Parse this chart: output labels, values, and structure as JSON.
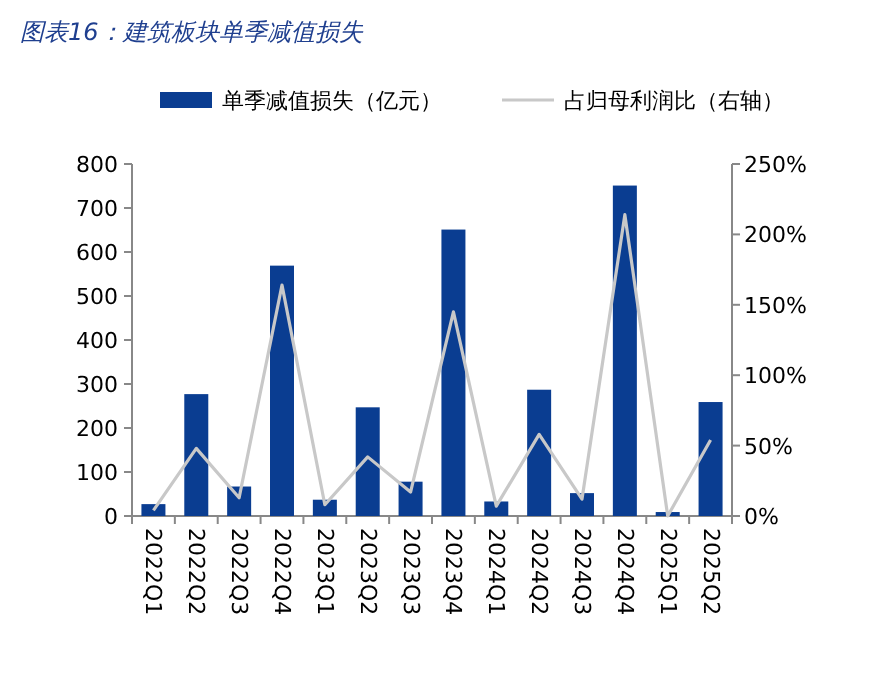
{
  "chart_data": {
    "type": "bar",
    "title": "图表16：建筑板块单季减值损失",
    "categories": [
      "2022Q1",
      "2022Q2",
      "2022Q3",
      "2022Q4",
      "2023Q1",
      "2023Q2",
      "2023Q3",
      "2023Q4",
      "2024Q1",
      "2024Q2",
      "2024Q3",
      "2024Q4",
      "2025Q1",
      "2025Q2"
    ],
    "series": [
      {
        "name": "单季减值损失（亿元）",
        "color": "#0a3d91",
        "values": [
          27,
          277,
          67,
          569,
          37,
          247,
          78,
          651,
          33,
          287,
          52,
          751,
          9,
          259
        ]
      },
      {
        "name": "占归母利润比（右轴）",
        "type": "line",
        "axis": "y2",
        "color": "#c8c8c8",
        "values": [
          4,
          48,
          13,
          164,
          8,
          42,
          17,
          145,
          7,
          58,
          12,
          214,
          0,
          54
        ]
      }
    ],
    "ylim": [
      0,
      800
    ],
    "yticks": [
      0,
      100,
      200,
      300,
      400,
      500,
      600,
      700,
      800
    ],
    "y2lim": [
      0,
      250
    ],
    "y2ticks": [
      {
        "value": 0,
        "label": "0%"
      },
      {
        "value": 50,
        "label": "50%"
      },
      {
        "value": 100,
        "label": "100%"
      },
      {
        "value": 150,
        "label": "150%"
      },
      {
        "value": 200,
        "label": "200%"
      },
      {
        "value": 250,
        "label": "250%"
      }
    ],
    "legend": "top",
    "grid": false
  }
}
